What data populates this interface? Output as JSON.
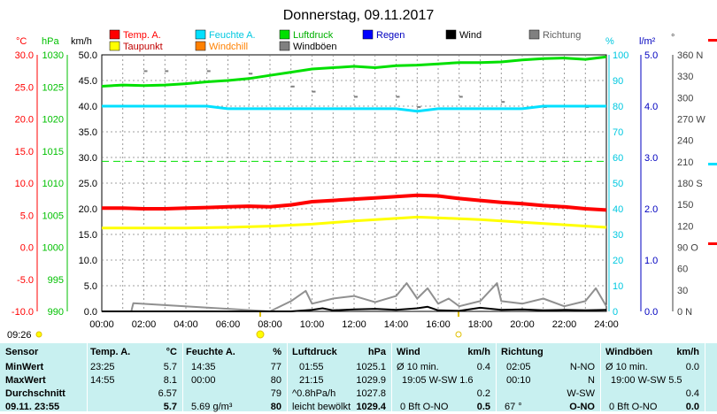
{
  "title": "Donnerstag, 09.11.2017",
  "legend": [
    {
      "label": "Temp. A.",
      "color": "#ff0000"
    },
    {
      "label": "Feuchte A.",
      "color": "#00e0ff"
    },
    {
      "label": "Luftdruck",
      "color": "#00e000"
    },
    {
      "label": "Regen",
      "color": "#0000ff"
    },
    {
      "label": "Wind",
      "color": "#000000"
    },
    {
      "label": "Richtung",
      "color": "#808080"
    },
    {
      "label": "Taupunkt",
      "color": "#ffff00"
    },
    {
      "label": "Windchill",
      "color": "#ff8000"
    },
    {
      "label": "Windböen",
      "color": "#808080"
    }
  ],
  "axes": {
    "temp": {
      "unit": "°C",
      "ticks": [
        "30.0",
        "25.0",
        "20.0",
        "15.0",
        "10.0",
        "5.0",
        "0.0",
        "-5.0",
        "-10.0"
      ],
      "color": "#ff0000"
    },
    "pressure": {
      "unit": "hPa",
      "ticks": [
        "1030",
        "1025",
        "1020",
        "1015",
        "1010",
        "1005",
        "1000",
        "995",
        "990"
      ],
      "color": "#00c000"
    },
    "wind": {
      "unit": "km/h",
      "ticks": [
        "50.0",
        "45.0",
        "40.0",
        "35.0",
        "30.0",
        "25.0",
        "20.0",
        "15.0",
        "10.0",
        "5.0",
        "0.0"
      ],
      "color": "#000000"
    },
    "humidity": {
      "unit": "%",
      "ticks": [
        "100",
        "90",
        "80",
        "70",
        "60",
        "50",
        "40",
        "30",
        "20",
        "10",
        "0"
      ],
      "color": "#00c8e0"
    },
    "rain": {
      "unit": "l/m²",
      "ticks": [
        "5.0",
        "4.0",
        "3.0",
        "2.0",
        "1.0",
        "0.0"
      ],
      "color": "#0000c0"
    },
    "direction": {
      "unit": "°",
      "ticks": [
        "360 N",
        "330",
        "300",
        "270 W",
        "240",
        "210",
        "180 S",
        "150",
        "120",
        "90 O",
        "60",
        "30",
        "0 N"
      ],
      "color": "#404040"
    }
  },
  "time_labels": [
    "00:00",
    "02:00",
    "04:00",
    "06:00",
    "08:00",
    "10:00",
    "12:00",
    "14:00",
    "16:00",
    "18:00",
    "20:00",
    "22:00",
    "24:00"
  ],
  "sun_times": {
    "left": "09:26"
  },
  "chart_data": {
    "type": "line",
    "x_unit": "hours",
    "xlim": [
      0,
      24
    ],
    "series": [
      {
        "name": "Temp. A.",
        "axis": "°C",
        "x": [
          0,
          1,
          2,
          3,
          4,
          5,
          6,
          7,
          8,
          9,
          10,
          11,
          12,
          13,
          14,
          15,
          16,
          17,
          18,
          19,
          20,
          21,
          22,
          23,
          24
        ],
        "values": [
          6.1,
          6.1,
          6.0,
          6.0,
          6.1,
          6.2,
          6.3,
          6.4,
          6.3,
          6.6,
          7.1,
          7.3,
          7.5,
          7.7,
          7.9,
          8.1,
          8.0,
          7.6,
          7.3,
          7.0,
          6.8,
          6.5,
          6.3,
          6.0,
          5.8
        ]
      },
      {
        "name": "Taupunkt",
        "axis": "°C",
        "x": [
          0,
          2,
          4,
          6,
          8,
          10,
          12,
          14,
          15,
          16,
          18,
          20,
          22,
          24
        ],
        "values": [
          3.0,
          3.0,
          3.0,
          3.1,
          3.3,
          3.6,
          4.1,
          4.5,
          4.7,
          4.6,
          4.3,
          3.9,
          3.5,
          3.1
        ]
      },
      {
        "name": "Feuchte A.",
        "axis": "%",
        "x": [
          0,
          2,
          4,
          5,
          6,
          8,
          10,
          12,
          14,
          15,
          16,
          17,
          18,
          20,
          21,
          22,
          24
        ],
        "values": [
          80,
          80,
          80,
          80,
          79,
          79,
          79,
          79,
          79,
          78,
          79,
          79,
          79,
          79,
          80,
          80,
          80
        ]
      },
      {
        "name": "Luftdruck",
        "axis": "hPa",
        "x": [
          0,
          1,
          2,
          3,
          4,
          5,
          6,
          7,
          8,
          9,
          10,
          11,
          12,
          13,
          14,
          15,
          16,
          17,
          18,
          19,
          20,
          21,
          22,
          23,
          24
        ],
        "values": [
          1025.1,
          1025.3,
          1025.2,
          1025.3,
          1025.5,
          1025.8,
          1026.0,
          1026.3,
          1026.8,
          1027.3,
          1027.8,
          1028.0,
          1028.2,
          1028.0,
          1028.3,
          1028.4,
          1028.6,
          1028.8,
          1028.8,
          1028.9,
          1029.2,
          1029.4,
          1029.5,
          1029.3,
          1029.7
        ]
      },
      {
        "name": "Wind",
        "axis": "km/h",
        "x": [
          0,
          8,
          9,
          10,
          10.5,
          11,
          12,
          13,
          14,
          15,
          15.5,
          16,
          17,
          18,
          19,
          20,
          21,
          22,
          23,
          24
        ],
        "values": [
          0,
          0,
          0,
          0.3,
          0.6,
          0.2,
          0.4,
          0.5,
          0.3,
          0.6,
          0.9,
          0.2,
          0.1,
          0.7,
          0.3,
          0.4,
          0.2,
          0.3,
          0.2,
          0.3
        ]
      },
      {
        "name": "Windböen",
        "axis": "km/h",
        "x": [
          0,
          1.4,
          1.5,
          8,
          9,
          9.7,
          10,
          11,
          12,
          13,
          14,
          14.5,
          15,
          15.5,
          16,
          16.5,
          17,
          18,
          18.8,
          19,
          20,
          21,
          22,
          23,
          23.5,
          24
        ],
        "values": [
          0,
          0,
          1.6,
          0,
          2.0,
          4.0,
          1.5,
          2.5,
          3.0,
          1.8,
          3.0,
          5.5,
          2.5,
          4.5,
          1.5,
          2.5,
          1.0,
          2.0,
          5.5,
          2.0,
          1.5,
          2.5,
          1.0,
          2.0,
          4.5,
          1.0
        ]
      }
    ],
    "reference_lines": [
      {
        "axis": "%",
        "value": 58.5,
        "style": "dashed",
        "color": "#00e000"
      }
    ]
  },
  "stats": {
    "sensor": {
      "header": "Sensor",
      "rows": [
        "MinWert",
        "MaxWert",
        "Durchschnitt",
        "09.11. 23:55"
      ]
    },
    "temp": {
      "header": "Temp. A.",
      "unit": "°C",
      "rows": [
        [
          "23:25",
          "5.7"
        ],
        [
          "14:55",
          "8.1"
        ],
        [
          "",
          "6.57"
        ],
        [
          "",
          "5.7"
        ]
      ]
    },
    "humidity": {
      "header": "Feuchte A.",
      "unit": "%",
      "rows": [
        [
          "14:35",
          "77"
        ],
        [
          "00:00",
          "80"
        ],
        [
          "",
          "79"
        ],
        [
          "5.69 g/m³",
          "80"
        ]
      ]
    },
    "pressure": {
      "header": "Luftdruck",
      "unit": "hPa",
      "rows": [
        [
          "01:55",
          "1025.1"
        ],
        [
          "21:15",
          "1029.9"
        ],
        [
          "^0.8hPa/h",
          "1027.8"
        ],
        [
          "leicht bewölkt",
          "1029.4"
        ]
      ]
    },
    "wind": {
      "header": "Wind",
      "unit": "km/h",
      "rows": [
        [
          "Ø 10 min.",
          "0.4"
        ],
        [
          "19:05  W-SW 1.6",
          ""
        ],
        [
          "",
          "0.2"
        ],
        [
          "0 Bft O-NO",
          "0.5"
        ]
      ]
    },
    "direction": {
      "header": "Richtung",
      "rows": [
        [
          "02:05",
          "N-NO"
        ],
        [
          "00:10",
          "N"
        ],
        [
          "",
          "W-SW"
        ],
        [
          "67 °",
          "O-NO"
        ]
      ]
    },
    "gusts": {
      "header": "Windböen",
      "unit": "km/h",
      "rows": [
        [
          "Ø 10 min.",
          "0.0"
        ],
        [
          "19:00  W-SW 5.5",
          ""
        ],
        [
          "",
          "0.4"
        ],
        [
          "0 Bft O-NO",
          "0.0"
        ]
      ]
    }
  }
}
